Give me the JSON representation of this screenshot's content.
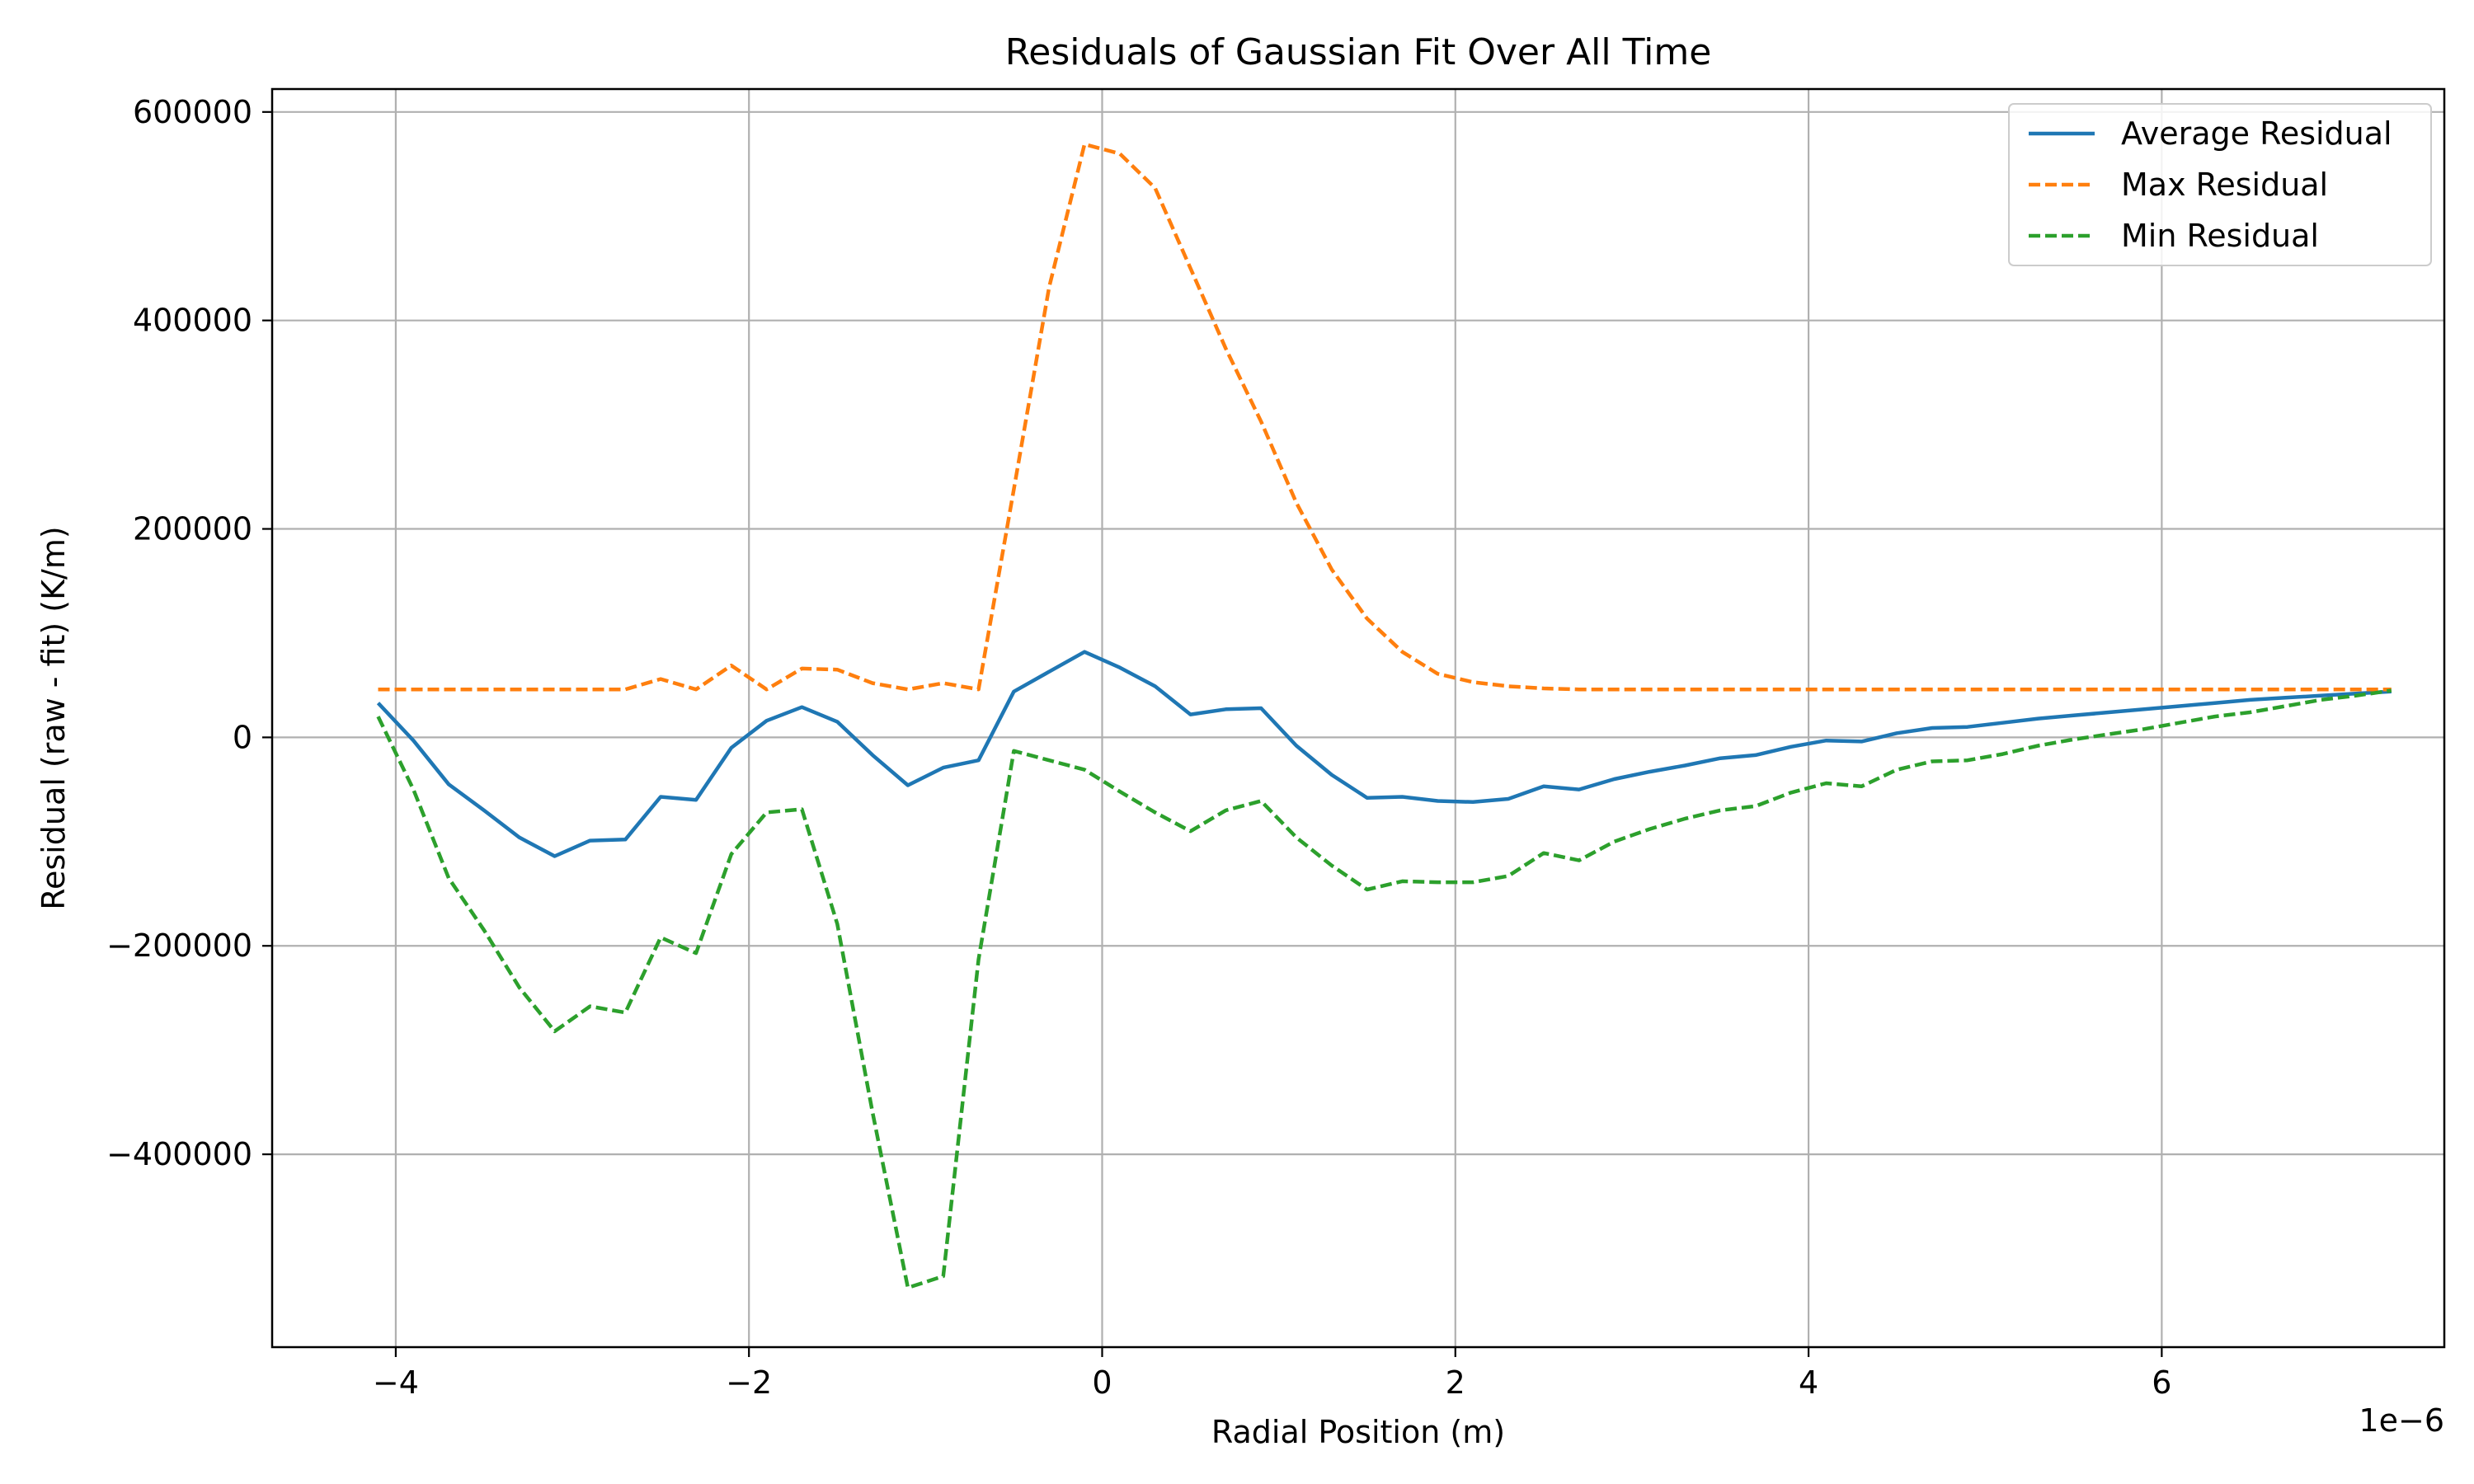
{
  "chart_data": {
    "type": "line",
    "title": "Residuals of Gaussian Fit Over All Time",
    "xlabel": "Radial Position (m)",
    "ylabel": "Residual (raw - fit) (K/m)",
    "x_offset_label": "1e−6",
    "xlim": [
      -4.7,
      7.6
    ],
    "ylim": [
      -585000,
      622000
    ],
    "xticks": [
      -4,
      -2,
      0,
      2,
      4,
      6
    ],
    "xtick_labels": [
      "−4",
      "−2",
      "0",
      "2",
      "4",
      "6"
    ],
    "yticks": [
      -400000,
      -200000,
      0,
      200000,
      400000,
      600000
    ],
    "ytick_labels": [
      "−400000",
      "−200000",
      "0",
      "200000",
      "400000",
      "600000"
    ],
    "grid": true,
    "legend_position": "top-right",
    "x": [
      -4.1,
      -3.9,
      -3.7,
      -3.5,
      -3.3,
      -3.1,
      -2.9,
      -2.7,
      -2.5,
      -2.3,
      -2.1,
      -1.9,
      -1.7,
      -1.5,
      -1.3,
      -1.1,
      -0.9,
      -0.7,
      -0.5,
      -0.3,
      -0.1,
      0.1,
      0.3,
      0.5,
      0.7,
      0.9,
      1.1,
      1.3,
      1.5,
      1.7,
      1.9,
      2.1,
      2.3,
      2.5,
      2.7,
      2.9,
      3.1,
      3.3,
      3.5,
      3.7,
      3.9,
      4.1,
      4.3,
      4.5,
      4.7,
      4.9,
      5.1,
      5.3,
      5.5,
      5.7,
      5.9,
      6.1,
      6.3,
      6.5,
      6.7,
      6.9,
      7.1,
      7.3
    ],
    "series": [
      {
        "name": "Average Residual",
        "color": "#1f77b4",
        "dash": "solid",
        "values": [
          33000,
          -3000,
          -45000,
          -70000,
          -96000,
          -114000,
          -99000,
          -98000,
          -57000,
          -60000,
          -10000,
          16000,
          29000,
          15000,
          -17000,
          -46000,
          -29000,
          -22000,
          44000,
          63000,
          82000,
          67000,
          49000,
          22000,
          27000,
          28000,
          -8000,
          -36000,
          -58000,
          -57000,
          -61000,
          -62000,
          -59000,
          -47000,
          -50000,
          -40000,
          -33000,
          -27000,
          -20000,
          -17000,
          -9000,
          -3000,
          -4000,
          4000,
          9000,
          10000,
          14000,
          18000,
          21000,
          24000,
          27000,
          30000,
          33000,
          36000,
          38000,
          40000,
          42000,
          44000
        ]
      },
      {
        "name": "Max Residual",
        "color": "#ff7f0e",
        "dash": "dashed",
        "values": [
          46000,
          46000,
          46000,
          46000,
          46000,
          46000,
          46000,
          46000,
          56000,
          46000,
          69000,
          46000,
          66000,
          65000,
          52000,
          46000,
          52000,
          46000,
          238000,
          432000,
          569000,
          560000,
          527000,
          450000,
          373000,
          303000,
          225000,
          161000,
          114000,
          82000,
          61000,
          53000,
          49000,
          47000,
          46000,
          46000,
          46000,
          46000,
          46000,
          46000,
          46000,
          46000,
          46000,
          46000,
          46000,
          46000,
          46000,
          46000,
          46000,
          46000,
          46000,
          46000,
          46000,
          46000,
          46000,
          46000,
          46000,
          46000
        ]
      },
      {
        "name": "Min Residual",
        "color": "#2ca02c",
        "dash": "dashed",
        "values": [
          20000,
          -50000,
          -135000,
          -185000,
          -240000,
          -282000,
          -258000,
          -264000,
          -192000,
          -207000,
          -112000,
          -72000,
          -69000,
          -179000,
          -360000,
          -528000,
          -517000,
          -213000,
          -13000,
          -22000,
          -31000,
          -52000,
          -72000,
          -90000,
          -70000,
          -61000,
          -96000,
          -123000,
          -146000,
          -138000,
          -139000,
          -139000,
          -133000,
          -111000,
          -118000,
          -100000,
          -88000,
          -78000,
          -70000,
          -66000,
          -53000,
          -44000,
          -47000,
          -31000,
          -23000,
          -22000,
          -16000,
          -8000,
          -2000,
          3000,
          8000,
          14000,
          20000,
          24000,
          30000,
          36000,
          40000,
          45000
        ]
      }
    ]
  }
}
